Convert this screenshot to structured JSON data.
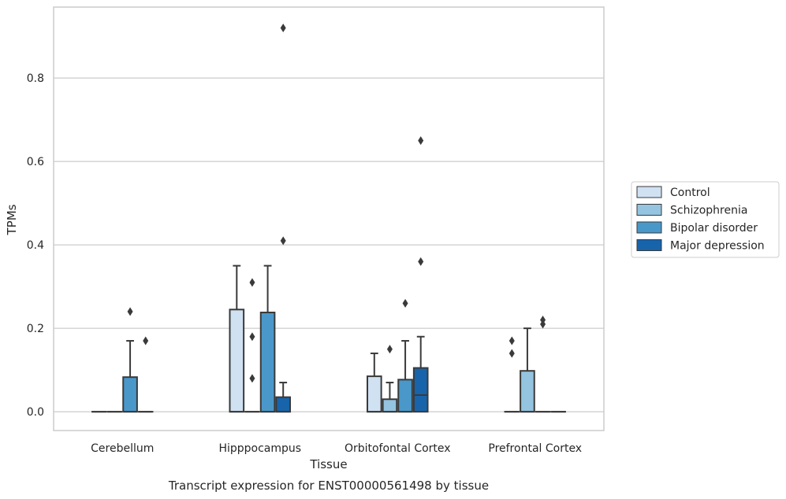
{
  "chart_data": {
    "type": "box",
    "xlabel": "Tissue",
    "ylabel": "TPMs",
    "caption": "Transcript expression for ENST00000561498 by tissue",
    "ylim": [
      -0.045,
      0.97
    ],
    "yticks": [
      0.0,
      0.2,
      0.4,
      0.6,
      0.8
    ],
    "ytick_labels": [
      "0.0",
      "0.2",
      "0.4",
      "0.6",
      "0.8"
    ],
    "grid": "horizontal",
    "legend_position": "right",
    "categories": [
      "Cerebellum",
      "Hipppocampus",
      "Orbitofontal Cortex",
      "Prefrontal Cortex"
    ],
    "series": [
      {
        "name": "Control",
        "color": "#d0e1f2",
        "boxes": [
          {
            "q1": 0,
            "median": 0,
            "q3": 0,
            "whisker_low": 0,
            "whisker_high": 0,
            "outliers": []
          },
          {
            "q1": 0,
            "median": 0,
            "q3": 0.245,
            "whisker_low": 0,
            "whisker_high": 0.35,
            "outliers": []
          },
          {
            "q1": 0,
            "median": 0,
            "q3": 0.085,
            "whisker_low": 0,
            "whisker_high": 0.14,
            "outliers": []
          },
          {
            "q1": 0,
            "median": 0,
            "q3": 0,
            "whisker_low": 0,
            "whisker_high": 0,
            "outliers": [
              0.14,
              0.17
            ]
          }
        ]
      },
      {
        "name": "Schizophrenia",
        "color": "#94c4df",
        "boxes": [
          {
            "q1": 0,
            "median": 0,
            "q3": 0,
            "whisker_low": 0,
            "whisker_high": 0,
            "outliers": []
          },
          {
            "q1": 0,
            "median": 0,
            "q3": 0,
            "whisker_low": 0,
            "whisker_high": 0,
            "outliers": [
              0.08,
              0.18,
              0.31
            ]
          },
          {
            "q1": 0,
            "median": 0,
            "q3": 0.03,
            "whisker_low": 0,
            "whisker_high": 0.07,
            "outliers": [
              0.15
            ]
          },
          {
            "q1": 0,
            "median": 0,
            "q3": 0.098,
            "whisker_low": 0,
            "whisker_high": 0.2,
            "outliers": []
          }
        ]
      },
      {
        "name": "Bipolar disorder",
        "color": "#4a98c9",
        "boxes": [
          {
            "q1": 0,
            "median": 0,
            "q3": 0.083,
            "whisker_low": 0,
            "whisker_high": 0.17,
            "outliers": [
              0.24
            ]
          },
          {
            "q1": 0,
            "median": 0,
            "q3": 0.238,
            "whisker_low": 0,
            "whisker_high": 0.35,
            "outliers": []
          },
          {
            "q1": 0,
            "median": 0,
            "q3": 0.077,
            "whisker_low": 0,
            "whisker_high": 0.17,
            "outliers": [
              0.26
            ]
          },
          {
            "q1": 0,
            "median": 0,
            "q3": 0,
            "whisker_low": 0,
            "whisker_high": 0,
            "outliers": [
              0.21,
              0.22
            ]
          }
        ]
      },
      {
        "name": "Major depression",
        "color": "#1764ab",
        "boxes": [
          {
            "q1": 0,
            "median": 0,
            "q3": 0,
            "whisker_low": 0,
            "whisker_high": 0,
            "outliers": [
              0.17
            ]
          },
          {
            "q1": 0,
            "median": 0,
            "q3": 0.035,
            "whisker_low": 0,
            "whisker_high": 0.07,
            "outliers": [
              0.41,
              0.92
            ]
          },
          {
            "q1": 0,
            "median": 0.04,
            "q3": 0.105,
            "whisker_low": 0,
            "whisker_high": 0.18,
            "outliers": [
              0.36,
              0.65
            ]
          },
          {
            "q1": 0,
            "median": 0,
            "q3": 0,
            "whisker_low": 0,
            "whisker_high": 0,
            "outliers": []
          }
        ]
      }
    ]
  }
}
